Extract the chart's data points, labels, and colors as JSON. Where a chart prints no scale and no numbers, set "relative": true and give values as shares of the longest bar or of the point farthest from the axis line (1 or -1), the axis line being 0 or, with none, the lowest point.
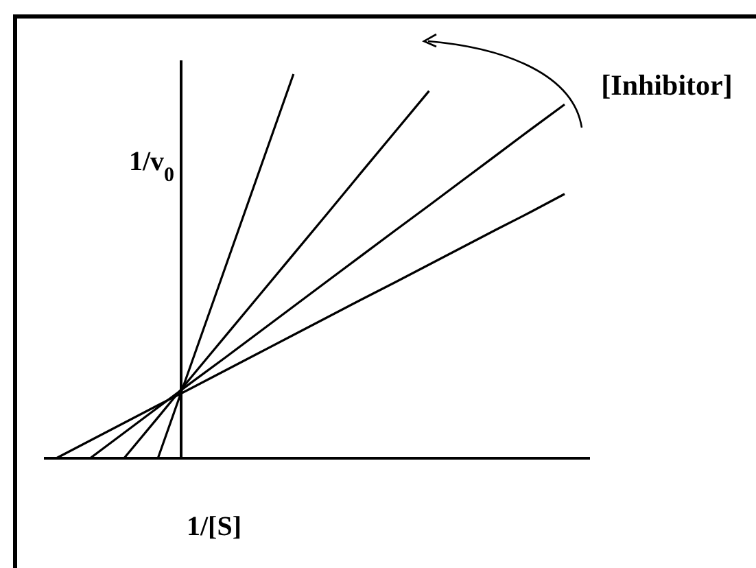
{
  "chart_data": {
    "type": "line",
    "relative": true,
    "xlabel": "1/[S]",
    "ylabel": "1/v$_{0}$",
    "annotations": [
      "[Inhibitor]"
    ],
    "marker": "none",
    "line_style": "solid",
    "categories": [
      null,
      null,
      null,
      null,
      null,
      null,
      null,
      null,
      null,
      null,
      null,
      null,
      null,
      null,
      null,
      null,
      null
    ],
    "series": [
      {
        "color": "#000000",
        "values": [
          null,
          null,
          null,
          0,
          0.25,
          0.5,
          0.75,
          1.0,
          null,
          null,
          null,
          null,
          null,
          null,
          null,
          null,
          null
        ]
      },
      {
        "color": "#000000",
        "values": [
          null,
          null,
          0,
          0.106,
          0.213,
          0.319,
          0.425,
          0.531,
          0.637,
          0.744,
          0.85,
          0.956,
          null,
          null,
          null,
          null,
          null
        ]
      },
      {
        "color": "#000000",
        "values": [
          null,
          0,
          0.066,
          0.132,
          0.198,
          0.263,
          0.329,
          0.395,
          0.461,
          0.527,
          0.593,
          0.658,
          0.724,
          0.79,
          0.856,
          0.921,
          null
        ]
      },
      {
        "color": "#000000",
        "values": [
          0,
          0.046,
          0.092,
          0.138,
          0.183,
          0.229,
          0.275,
          0.321,
          0.367,
          0.413,
          0.458,
          0.504,
          0.55,
          0.596,
          0.641,
          0.688,
          null
        ]
      }
    ]
  }
}
